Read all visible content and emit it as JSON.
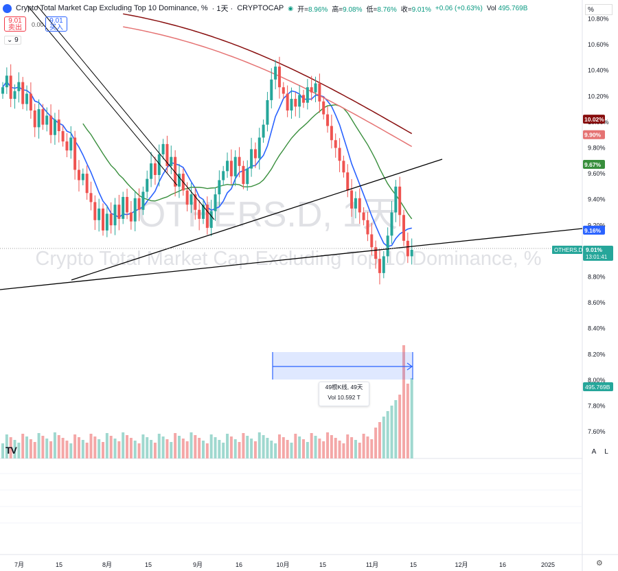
{
  "header": {
    "title": "Crypto Total Market Cap Excluding Top 10 Dominance, %",
    "interval": "· 1天 ·",
    "source": "CRYPTOCAP",
    "open_label": "开=",
    "open_value": "8.96%",
    "high_label": "高=",
    "high_value": "9.08%",
    "low_label": "低=",
    "low_value": "8.76%",
    "close_label": "收=",
    "close_value": "9.01%",
    "change": "+0.06 (+0.63%)",
    "vol_label": "Vol",
    "vol_value": "495.769",
    "vol_suffix": "B"
  },
  "trade": {
    "sell_price": "9.01",
    "sell_label": "卖出",
    "spread": "0.00",
    "buy_price": "9.01",
    "buy_label": "买入"
  },
  "indicator_count": "9",
  "scale_button": "%",
  "watermark": {
    "symbol": "OTHERS.D, 1天",
    "name": "Crypto Total Market Cap Excluding Top 10 Dominance, %"
  },
  "measure": {
    "bars": "49根K线, 49天",
    "vol": "Vol 10.592 T"
  },
  "scale_buttons": {
    "auto": "A",
    "log": "L"
  },
  "colors": {
    "up": "#26a69a",
    "down": "#ef5350",
    "ma_blue": "#2962ff",
    "ma_green": "#388e3c",
    "ma_red": "#e57373",
    "ma_darkred": "#880e0e",
    "trendline": "#000000"
  },
  "chart_data": {
    "type": "candlestick",
    "symbol": "OTHERS.D",
    "timeframe": "1天",
    "yaxis_unit": "%",
    "ylim": [
      7.45,
      10.9
    ],
    "y_ticks": [
      "10.80%",
      "10.60%",
      "10.40%",
      "10.20%",
      "10.00%",
      "9.80%",
      "9.60%",
      "9.40%",
      "9.20%",
      "9.00%",
      "8.80%",
      "8.60%",
      "8.40%",
      "8.20%",
      "8.00%",
      "7.80%",
      "7.60%"
    ],
    "x_ticks": [
      "7月",
      "15",
      "8月",
      "15",
      "9月",
      "16",
      "10月",
      "15",
      "11月",
      "15",
      "12月",
      "16",
      "2025"
    ],
    "closes": [
      10.27,
      10.36,
      10.18,
      10.24,
      10.31,
      10.14,
      10.22,
      10.09,
      9.96,
      10.1,
      9.98,
      10.05,
      9.9,
      10.02,
      9.93,
      9.85,
      9.78,
      9.88,
      9.63,
      9.55,
      9.6,
      9.45,
      9.38,
      9.24,
      9.33,
      9.16,
      9.29,
      9.2,
      9.36,
      9.25,
      9.42,
      9.3,
      9.23,
      9.41,
      9.32,
      9.46,
      9.56,
      9.68,
      9.59,
      9.75,
      9.83,
      9.66,
      9.73,
      9.5,
      9.6,
      9.47,
      9.36,
      9.44,
      9.32,
      9.25,
      9.36,
      9.18,
      9.31,
      9.44,
      9.55,
      9.62,
      9.7,
      9.58,
      9.73,
      9.66,
      9.52,
      9.64,
      9.79,
      9.72,
      9.88,
      9.98,
      10.17,
      10.33,
      10.43,
      10.27,
      10.22,
      10.09,
      10.18,
      10.12,
      10.21,
      10.15,
      10.27,
      10.23,
      10.3,
      10.16,
      10.06,
      9.97,
      9.86,
      9.8,
      9.7,
      9.61,
      9.47,
      9.33,
      9.41,
      9.3,
      9.24,
      9.13,
      9.03,
      8.94,
      8.83,
      8.96,
      9.12,
      9.3,
      9.5,
      9.28,
      9.08,
      8.96,
      9.01
    ],
    "lines": [
      {
        "name": "MA (blue)",
        "label": "9.16%",
        "last": 9.16
      },
      {
        "name": "MA (green)",
        "label": "9.67%",
        "last": 9.67
      },
      {
        "name": "MA (red)",
        "label": "9.90%",
        "last": 9.9
      },
      {
        "name": "MA (dark red)",
        "label": "10.02%",
        "last": 10.02
      }
    ],
    "price_tag": {
      "symbol": "OTHERS.D",
      "value": "9.01%",
      "countdown": "13:01:41"
    },
    "volume_tag": "495.769B"
  }
}
